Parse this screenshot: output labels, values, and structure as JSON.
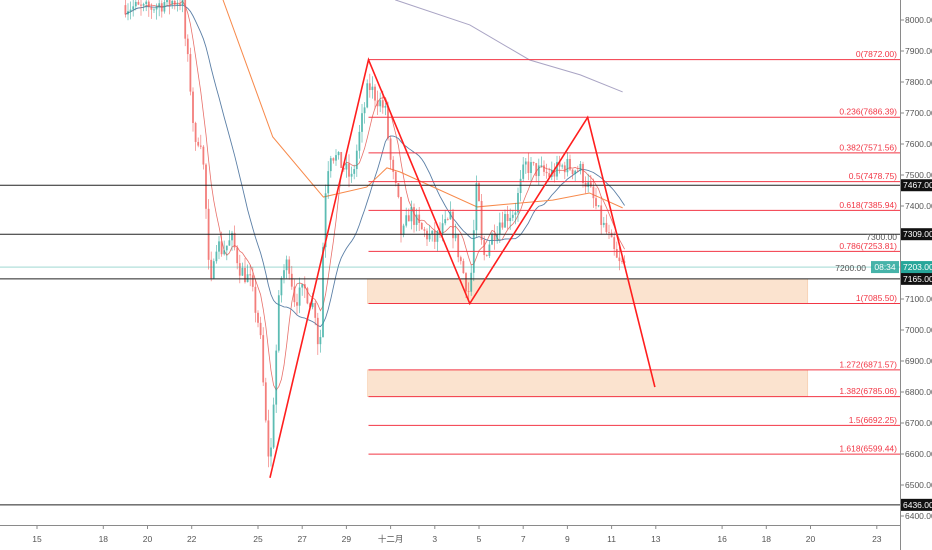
{
  "chart_data": {
    "type": "candlestick",
    "price_axis": {
      "min": 6400,
      "max": 8000,
      "step": 100,
      "labels": [
        "8000.00",
        "7900.00",
        "7800.00",
        "7700.00",
        "7600.00",
        "7500.00",
        "7400.00",
        "7300.00",
        "7200.00",
        "7100.00",
        "7000.00",
        "6900.00",
        "6800.00",
        "6700.00",
        "6600.00",
        "6500.00",
        "6400.00"
      ]
    },
    "time_axis": {
      "ticks": [
        {
          "label": "15",
          "date": "11-15 00"
        },
        {
          "label": "18",
          "date": "11-18 00"
        },
        {
          "label": "20",
          "date": "11-20 00"
        },
        {
          "label": "22",
          "date": "11-22 00"
        },
        {
          "label": "25",
          "date": "11-25 00"
        },
        {
          "label": "27",
          "date": "11-27 00"
        },
        {
          "label": "29",
          "date": "11-29 00"
        },
        {
          "label": "十二月",
          "date": "12-01 00"
        },
        {
          "label": "3",
          "date": "12-03 00"
        },
        {
          "label": "5",
          "date": "12-05 00"
        },
        {
          "label": "7",
          "date": "12-07 00"
        },
        {
          "label": "9",
          "date": "12-09 00"
        },
        {
          "label": "11",
          "date": "12-11 00"
        },
        {
          "label": "13",
          "date": "12-13 00"
        },
        {
          "label": "16",
          "date": "12-16 00"
        },
        {
          "label": "18",
          "date": "12-18 00"
        },
        {
          "label": "20",
          "date": "12-20 00"
        },
        {
          "label": "23",
          "date": "12-23 00"
        }
      ]
    },
    "price_path": [
      [
        "11-19 00",
        8048
      ],
      [
        "11-19 21",
        8032
      ],
      [
        "11-20 19",
        8058
      ],
      [
        "11-21 15",
        8065
      ],
      [
        "11-21 17",
        7935
      ],
      [
        "11-21 22",
        7806
      ],
      [
        "11-22 04",
        7581
      ],
      [
        "11-22 09",
        7645
      ],
      [
        "11-22 14",
        7484
      ],
      [
        "11-22 20",
        7097
      ],
      [
        "11-23 01",
        7290
      ],
      [
        "11-23 09",
        7258
      ],
      [
        "11-23 20",
        7290
      ],
      [
        "11-24 05",
        7194
      ],
      [
        "11-24 15",
        7161
      ],
      [
        "11-25 02",
        7000
      ],
      [
        "11-25 08",
        6710
      ],
      [
        "11-25 13",
        6548
      ],
      [
        "11-25 18",
        6839
      ],
      [
        "11-26 00",
        7161
      ],
      [
        "11-26 09",
        7226
      ],
      [
        "11-26 16",
        7097
      ],
      [
        "11-27 03",
        7129
      ],
      [
        "11-27 14",
        7065
      ],
      [
        "11-27 19",
        6903
      ],
      [
        "11-28 00",
        7419
      ],
      [
        "11-28 06",
        7581
      ],
      [
        "11-28 23",
        7516
      ],
      [
        "11-29 06",
        7484
      ],
      [
        "11-29 15",
        7645
      ],
      [
        "11-30 00",
        7790
      ],
      [
        "11-30 07",
        7758
      ],
      [
        "11-30 18",
        7710
      ],
      [
        "12-01 01",
        7516
      ],
      [
        "12-01 08",
        7419
      ],
      [
        "12-01 12",
        7290
      ],
      [
        "12-01 21",
        7387
      ],
      [
        "12-02 08",
        7323
      ],
      [
        "12-03 00",
        7290
      ],
      [
        "12-03 17",
        7355
      ],
      [
        "12-04 09",
        7161
      ],
      [
        "12-04 14",
        7113
      ],
      [
        "12-04 22",
        7484
      ],
      [
        "12-05 04",
        7226
      ],
      [
        "12-05 12",
        7290
      ],
      [
        "12-05 23",
        7355
      ],
      [
        "12-06 15",
        7387
      ],
      [
        "12-07 02",
        7532
      ],
      [
        "12-07 13",
        7516
      ],
      [
        "12-08 05",
        7500
      ],
      [
        "12-08 21",
        7532
      ],
      [
        "12-09 14",
        7516
      ],
      [
        "12-10 00",
        7452
      ],
      [
        "12-10 12",
        7355
      ],
      [
        "12-10 22",
        7290
      ],
      [
        "12-11 07",
        7210
      ],
      [
        "12-11 15",
        7210
      ]
    ],
    "moving_averages": [
      {
        "color": "#f7894a",
        "points": [
          [
            "11-23 10",
            8065
          ],
          [
            "11-25 16",
            7623
          ],
          [
            "11-27 23",
            7429
          ],
          [
            "11-29 22",
            7461
          ],
          [
            "11-30 20",
            7523
          ],
          [
            "12-01 10",
            7510
          ],
          [
            "12-04 22",
            7397
          ],
          [
            "12-08 08",
            7419
          ],
          [
            "12-10 00",
            7442
          ],
          [
            "12-11 12",
            7394
          ]
        ]
      },
      {
        "color": "#a9a4c4",
        "points": [
          [
            "12-01 05",
            8065
          ],
          [
            "12-04 14",
            7984
          ],
          [
            "12-07 07",
            7871
          ],
          [
            "12-09 14",
            7823
          ],
          [
            "12-11 12",
            7768
          ]
        ]
      }
    ],
    "pattern": {
      "color": "#ff1e1e",
      "points": [
        [
          "11-25 13",
          6523
        ],
        [
          "11-30 00",
          7872
        ],
        [
          "12-04 14",
          7085.5
        ],
        [
          "12-09 22",
          7686
        ],
        [
          "12-12 23",
          6816
        ]
      ]
    },
    "fib_start": "11-30 00",
    "fib_levels": [
      {
        "label": "0(7872.00)",
        "price": 7872.0
      },
      {
        "label": "0.236(7686.39)",
        "price": 7686.39
      },
      {
        "label": "0.382(7571.56)",
        "price": 7571.56
      },
      {
        "label": "0.5(7478.75)",
        "price": 7478.75
      },
      {
        "label": "0.618(7385.94)",
        "price": 7385.94
      },
      {
        "label": "0.786(7253.81)",
        "price": 7253.81
      },
      {
        "label": "1(7085.50)",
        "price": 7085.5
      },
      {
        "label": "1.272(6871.57)",
        "price": 6871.57
      },
      {
        "label": "1.382(6785.06)",
        "price": 6785.06
      },
      {
        "label": "1.5(6692.25)",
        "price": 6692.25
      },
      {
        "label": "1.618(6599.44)",
        "price": 6599.44
      }
    ],
    "zones": [
      {
        "from": "11-29 23",
        "to": "12-19 21",
        "top": 7165,
        "bottom": 7085.5,
        "color": "#fbe3cf"
      },
      {
        "from": "11-29 23",
        "to": "12-19 21",
        "top": 6871.57,
        "bottom": 6785.06,
        "color": "#fbe3cf"
      }
    ],
    "horizontal_lines": [
      {
        "price": 7467,
        "label": "7467.00"
      },
      {
        "price": 7309,
        "label": "7309.00"
      },
      {
        "price": 7165,
        "label": "7165.00"
      },
      {
        "price": 6436,
        "label": "6436.00"
      }
    ],
    "last_price": {
      "price": 7203,
      "label": "7203.00",
      "countdown": "08:34",
      "color": "#26a69a"
    },
    "colors": {
      "up": "#26a69a",
      "down": "#ef5350",
      "fib": "#f23645"
    }
  }
}
